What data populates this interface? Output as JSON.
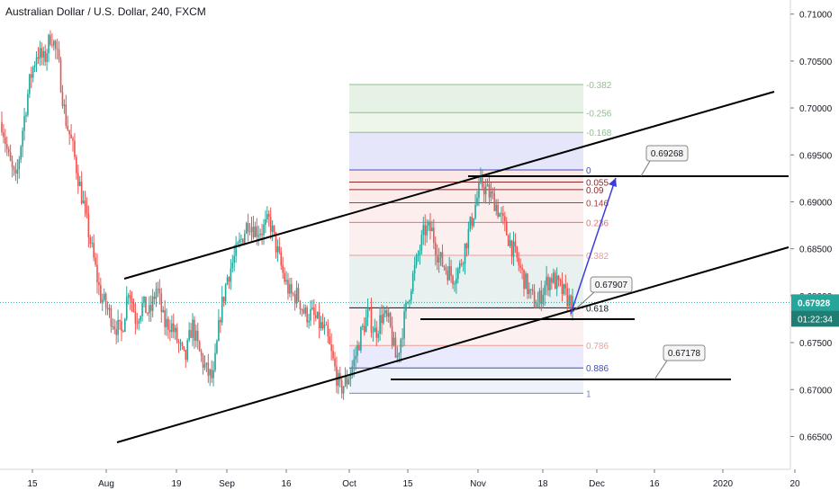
{
  "chart_title": "Australian Dollar / U.S. Dollar, 240, FXCM",
  "colors": {
    "up": "#26a69a",
    "down": "#ef5350",
    "price_line": "#26a69a",
    "axis_text": "#131722",
    "trendline": "#000000",
    "projection_arrow": "#3c3cde"
  },
  "chart_data": {
    "type": "candlestick",
    "title": "Australian Dollar / U.S. Dollar, 240, FXCM",
    "y_axis": {
      "position": "right",
      "ylim": [
        0.6615,
        0.7115
      ],
      "ticks": [
        "0.71000",
        "0.70500",
        "0.70000",
        "0.69500",
        "0.69000",
        "0.68500",
        "0.68000",
        "0.67500",
        "0.67000",
        "0.66500"
      ]
    },
    "x_axis": {
      "ticks": [
        "15",
        "Aug",
        "19",
        "Sep",
        "16",
        "Oct",
        "15",
        "Nov",
        "18",
        "Dec",
        "16",
        "2020",
        "20"
      ]
    },
    "current_price": "0.67928",
    "countdown": "01:22:34",
    "close_path": [
      [
        0,
        0.6985
      ],
      [
        1,
        0.6945
      ],
      [
        2,
        0.692
      ],
      [
        3,
        0.698
      ],
      [
        4,
        0.703
      ],
      [
        5,
        0.706
      ],
      [
        6,
        0.705
      ],
      [
        7,
        0.708
      ],
      [
        8,
        0.705
      ],
      [
        9,
        0.699
      ],
      [
        10,
        0.696
      ],
      [
        11,
        0.692
      ],
      [
        12,
        0.688
      ],
      [
        13,
        0.684
      ],
      [
        14,
        0.68
      ],
      [
        15,
        0.6785
      ],
      [
        16,
        0.677
      ],
      [
        17,
        0.676
      ],
      [
        18,
        0.681
      ],
      [
        19,
        0.6775
      ],
      [
        20,
        0.679
      ],
      [
        21,
        0.678
      ],
      [
        22,
        0.681
      ],
      [
        23,
        0.677
      ],
      [
        24,
        0.677
      ],
      [
        25,
        0.675
      ],
      [
        26,
        0.673
      ],
      [
        27,
        0.677
      ],
      [
        28,
        0.674
      ],
      [
        29,
        0.672
      ],
      [
        30,
        0.671
      ],
      [
        31,
        0.678
      ],
      [
        32,
        0.682
      ],
      [
        33,
        0.684
      ],
      [
        34,
        0.686
      ],
      [
        35,
        0.688
      ],
      [
        36,
        0.687
      ],
      [
        37,
        0.687
      ],
      [
        38,
        0.688
      ],
      [
        39,
        0.685
      ],
      [
        40,
        0.682
      ],
      [
        41,
        0.68
      ],
      [
        42,
        0.68
      ],
      [
        43,
        0.678
      ],
      [
        44,
        0.678
      ],
      [
        45,
        0.677
      ],
      [
        46,
        0.676
      ],
      [
        47,
        0.673
      ],
      [
        48,
        0.67
      ],
      [
        49,
        0.671
      ],
      [
        50,
        0.673
      ],
      [
        51,
        0.676
      ],
      [
        52,
        0.678
      ],
      [
        53,
        0.676
      ],
      [
        54,
        0.678
      ],
      [
        55,
        0.677
      ],
      [
        56,
        0.673
      ],
      [
        57,
        0.677
      ],
      [
        58,
        0.681
      ],
      [
        59,
        0.684
      ],
      [
        60,
        0.687
      ],
      [
        61,
        0.687
      ],
      [
        62,
        0.684
      ],
      [
        63,
        0.683
      ],
      [
        64,
        0.682
      ],
      [
        65,
        0.683
      ],
      [
        66,
        0.686
      ],
      [
        67,
        0.689
      ],
      [
        68,
        0.692
      ],
      [
        69,
        0.691
      ],
      [
        70,
        0.69
      ],
      [
        71,
        0.688
      ],
      [
        72,
        0.686
      ],
      [
        73,
        0.684
      ],
      [
        74,
        0.682
      ],
      [
        75,
        0.68
      ],
      [
        76,
        0.679
      ],
      [
        77,
        0.681
      ],
      [
        78,
        0.682
      ],
      [
        79,
        0.681
      ],
      [
        80,
        0.68
      ],
      [
        81,
        0.679
      ]
    ],
    "fib_levels": [
      {
        "label": "-0.382",
        "value": 0.7025
      },
      {
        "label": "-0.256",
        "value": 0.6995
      },
      {
        "label": "-0.168",
        "value": 0.6974
      },
      {
        "label": "0",
        "value": 0.6934
      },
      {
        "label": "0.055",
        "value": 0.6921
      },
      {
        "label": "0.09",
        "value": 0.6913
      },
      {
        "label": "0.146",
        "value": 0.6899
      },
      {
        "label": "0.236",
        "value": 0.6878
      },
      {
        "label": "0.382",
        "value": 0.6843
      },
      {
        "label": "0.618",
        "value": 0.6787
      },
      {
        "label": "0.786",
        "value": 0.6747
      },
      {
        "label": "0.886",
        "value": 0.6723
      },
      {
        "label": "1",
        "value": 0.6696
      }
    ],
    "annotations": [
      {
        "label": "0.69268"
      },
      {
        "label": "0.67907"
      },
      {
        "label": "0.67178"
      }
    ]
  }
}
